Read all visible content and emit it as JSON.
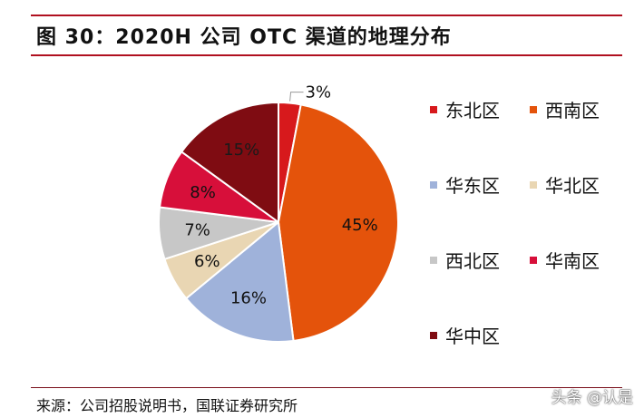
{
  "header": {
    "title": "图 30：2020H 公司 OTC 渠道的地理分布"
  },
  "footer": {
    "source": "来源：公司招股说明书，国联证券研究所",
    "watermark": "头条 @认是"
  },
  "chart_data": {
    "type": "pie",
    "legend_position": "right",
    "slices": [
      {
        "name": "东北区",
        "value": 3,
        "label": "3%",
        "color": "#d7191c"
      },
      {
        "name": "西南区",
        "value": 45,
        "label": "45%",
        "color": "#e4530b"
      },
      {
        "name": "华东区",
        "value": 16,
        "label": "16%",
        "color": "#9fb2da"
      },
      {
        "name": "华北区",
        "value": 6,
        "label": "6%",
        "color": "#e9d6b3"
      },
      {
        "name": "西北区",
        "value": 7,
        "label": "7%",
        "color": "#c7c7c7"
      },
      {
        "name": "华南区",
        "value": 8,
        "label": "8%",
        "color": "#d70f3a"
      },
      {
        "name": "华中区",
        "value": 15,
        "label": "15%",
        "color": "#7f0c12"
      }
    ]
  }
}
